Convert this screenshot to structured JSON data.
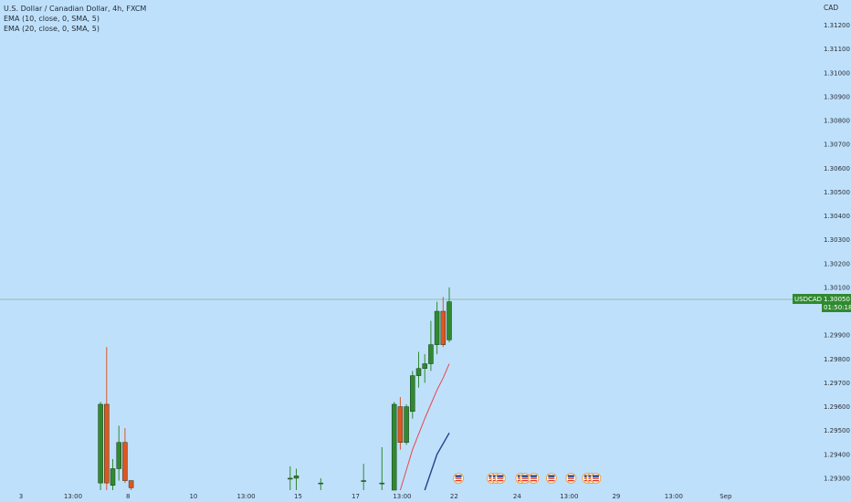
{
  "legend": {
    "title": "U.S. Dollar / Canadian Dollar, 4h, FXCM",
    "ema10": "EMA (10, close, 0, SMA, 5)",
    "ema20": "EMA (20, close, 0, SMA, 5)"
  },
  "colors": {
    "background": "#bfe0fb",
    "up": "#2f8a2f",
    "down": "#e0561f",
    "ema10": "#e8484c",
    "ema20": "#2c3e8c",
    "current_line": "#7fb58d",
    "axis_text": "#2b2f36"
  },
  "chart_data": {
    "type": "candlestick",
    "symbol": "USDCAD",
    "currency_label": "CAD",
    "current_price": "1.30050",
    "countdown": "01:50:18",
    "ylim": [
      1.2925,
      1.3129
    ],
    "y_ticks": [
      "1.31200",
      "1.31100",
      "1.31000",
      "1.30900",
      "1.30800",
      "1.30700",
      "1.30600",
      "1.30500",
      "1.30400",
      "1.30300",
      "1.30200",
      "1.30100",
      "1.29900",
      "1.29800",
      "1.29700",
      "1.29600",
      "1.29500",
      "1.29400",
      "1.29300"
    ],
    "x_ticks": [
      {
        "label": "3",
        "idx": 0
      },
      {
        "label": "13:00",
        "idx": 8.5
      },
      {
        "label": "8",
        "idx": 17.5
      },
      {
        "label": "10",
        "idx": 28.2
      },
      {
        "label": "13:00",
        "idx": 36.8
      },
      {
        "label": "15",
        "idx": 45.3
      },
      {
        "label": "17",
        "idx": 54.7
      },
      {
        "label": "13:00",
        "idx": 62.3
      },
      {
        "label": "22",
        "idx": 70.8
      },
      {
        "label": "24",
        "idx": 81.1
      },
      {
        "label": "13:00",
        "idx": 89.6
      },
      {
        "label": "29",
        "idx": 97.3
      },
      {
        "label": "13:00",
        "idx": 106.7
      },
      {
        "label": "Sep",
        "idx": 115.2
      }
    ],
    "candles": [
      {
        "idx": 13,
        "o": 1.2928,
        "h": 1.2962,
        "l": 1.2925,
        "c": 1.2961
      },
      {
        "idx": 14,
        "o": 1.2961,
        "h": 1.2985,
        "l": 1.2925,
        "c": 1.2928
      },
      {
        "idx": 15,
        "o": 1.2927,
        "h": 1.2938,
        "l": 1.2925,
        "c": 1.2934
      },
      {
        "idx": 16,
        "o": 1.2934,
        "h": 1.2952,
        "l": 1.2929,
        "c": 1.2945
      },
      {
        "idx": 17,
        "o": 1.2945,
        "h": 1.2951,
        "l": 1.2928,
        "c": 1.2929
      },
      {
        "idx": 18,
        "o": 1.2929,
        "h": 1.2929,
        "l": 1.2925,
        "c": 1.2926
      },
      {
        "idx": 44,
        "o": 1.293,
        "h": 1.2935,
        "l": 1.2925,
        "c": 1.293
      },
      {
        "idx": 45,
        "o": 1.293,
        "h": 1.2934,
        "l": 1.2925,
        "c": 1.2931
      },
      {
        "idx": 49,
        "o": 1.2928,
        "h": 1.293,
        "l": 1.2925,
        "c": 1.2928
      },
      {
        "idx": 56,
        "o": 1.2929,
        "h": 1.2936,
        "l": 1.2925,
        "c": 1.2929
      },
      {
        "idx": 59,
        "o": 1.2928,
        "h": 1.2943,
        "l": 1.2925,
        "c": 1.2928
      },
      {
        "idx": 61,
        "o": 1.2925,
        "h": 1.2962,
        "l": 1.2925,
        "c": 1.2961
      },
      {
        "idx": 62,
        "o": 1.296,
        "h": 1.2964,
        "l": 1.2942,
        "c": 1.2945
      },
      {
        "idx": 63,
        "o": 1.2945,
        "h": 1.2961,
        "l": 1.2944,
        "c": 1.296
      },
      {
        "idx": 64,
        "o": 1.2958,
        "h": 1.2975,
        "l": 1.2955,
        "c": 1.2973
      },
      {
        "idx": 65,
        "o": 1.2973,
        "h": 1.2983,
        "l": 1.2968,
        "c": 1.2976
      },
      {
        "idx": 66,
        "o": 1.2976,
        "h": 1.2982,
        "l": 1.297,
        "c": 1.2978
      },
      {
        "idx": 67,
        "o": 1.2978,
        "h": 1.2996,
        "l": 1.2975,
        "c": 1.2986
      },
      {
        "idx": 68,
        "o": 1.2986,
        "h": 1.3004,
        "l": 1.2982,
        "c": 1.3
      },
      {
        "idx": 69,
        "o": 1.3,
        "h": 1.3006,
        "l": 1.2985,
        "c": 1.2986
      },
      {
        "idx": 70,
        "o": 1.2988,
        "h": 1.301,
        "l": 1.2987,
        "c": 1.3004
      }
    ],
    "ema10": [
      [
        62,
        1.2925
      ],
      [
        64,
        1.2942
      ],
      [
        66,
        1.2955
      ],
      [
        68,
        1.2967
      ],
      [
        69,
        1.2972
      ],
      [
        70,
        1.2978
      ]
    ],
    "ema20": [
      [
        66,
        1.2925
      ],
      [
        68,
        1.294
      ],
      [
        70,
        1.2949
      ]
    ],
    "events": [
      {
        "idx": 71.5,
        "count": 1
      },
      {
        "idx": 77.0,
        "count": 3
      },
      {
        "idx": 81.7,
        "count": 2
      },
      {
        "idx": 83.8,
        "count": 1
      },
      {
        "idx": 86.7,
        "count": 1
      },
      {
        "idx": 89.9,
        "count": 1
      },
      {
        "idx": 92.6,
        "count": 3
      }
    ]
  }
}
